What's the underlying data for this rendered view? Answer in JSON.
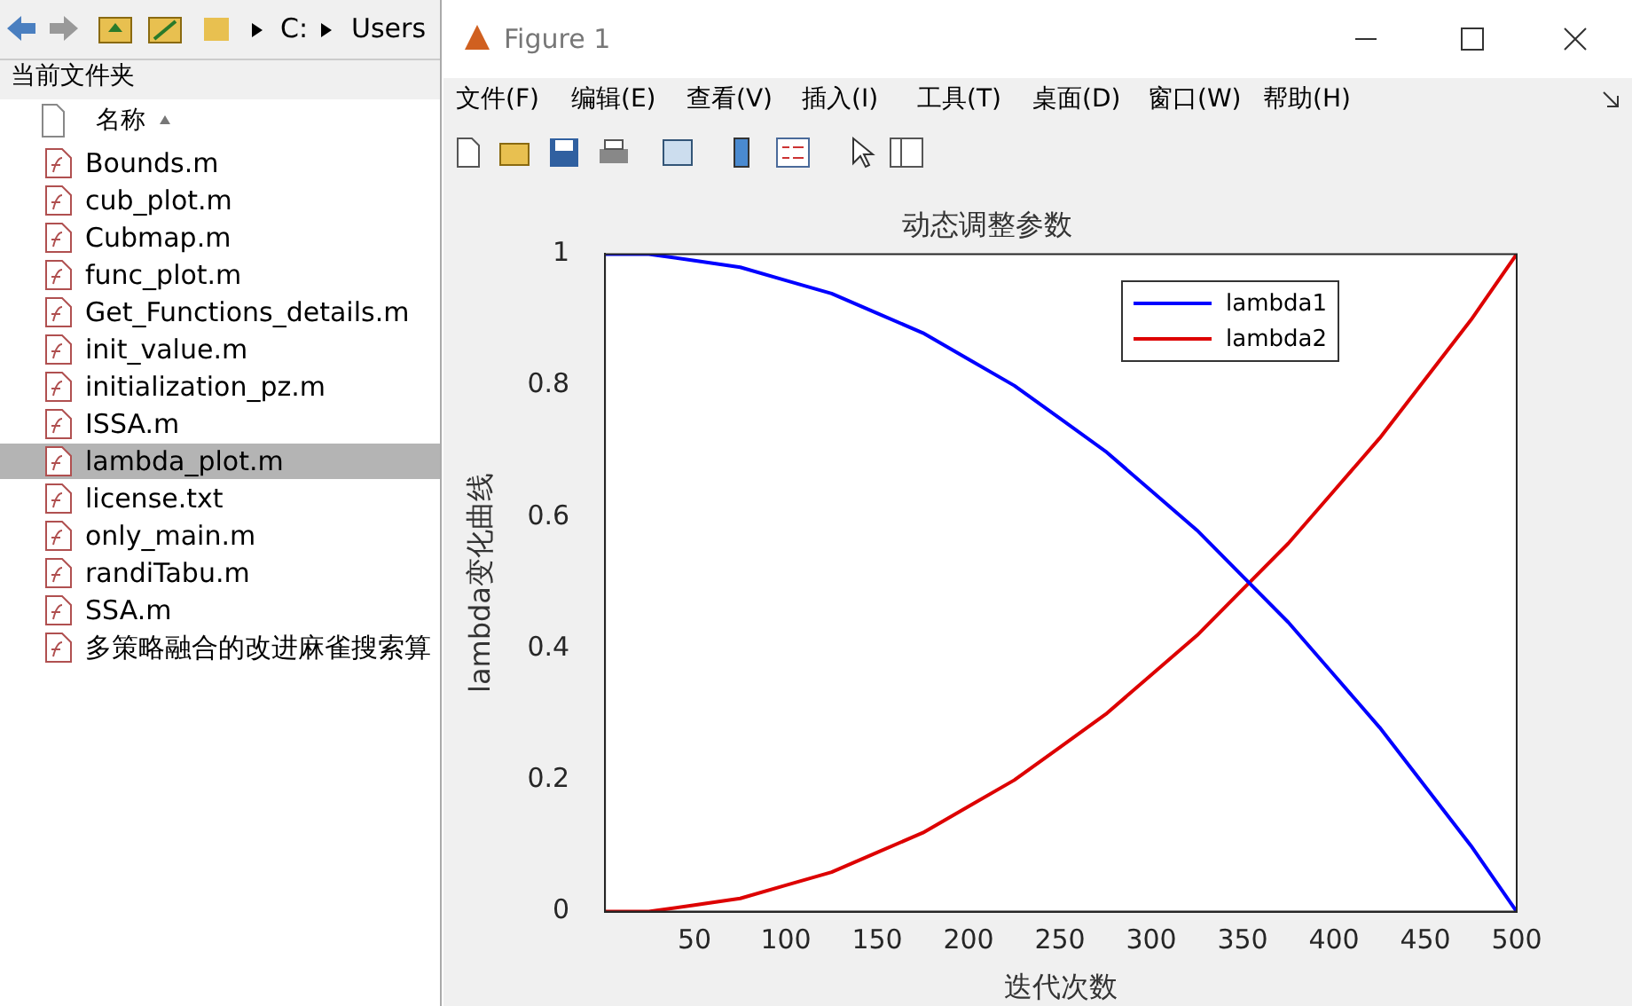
{
  "chart_data": {
    "type": "line",
    "title": "动态调整参数",
    "xlabel": "迭代次数",
    "ylabel": "lambda变化曲线",
    "x": [
      1,
      25,
      50,
      75,
      100,
      125,
      150,
      175,
      200,
      225,
      250,
      275,
      300,
      325,
      350,
      375,
      400,
      425,
      450,
      475,
      500
    ],
    "series": [
      {
        "name": "lambda1",
        "color": "#0000ff",
        "values": [
          1.0,
          1.0,
          0.99,
          0.98,
          0.96,
          0.94,
          0.91,
          0.88,
          0.84,
          0.8,
          0.75,
          0.7,
          0.64,
          0.58,
          0.51,
          0.44,
          0.36,
          0.28,
          0.19,
          0.1,
          0.0
        ]
      },
      {
        "name": "lambda2",
        "color": "#dd0000",
        "values": [
          0.0,
          0.0,
          0.01,
          0.02,
          0.04,
          0.06,
          0.09,
          0.12,
          0.16,
          0.2,
          0.25,
          0.3,
          0.36,
          0.42,
          0.49,
          0.56,
          0.64,
          0.72,
          0.81,
          0.9,
          1.0
        ]
      }
    ],
    "xlim": [
      1,
      500
    ],
    "xticks": [
      50,
      100,
      150,
      200,
      250,
      300,
      350,
      400,
      450,
      500
    ],
    "ylim": [
      0,
      1
    ],
    "yticks": [
      0,
      0.2,
      0.4,
      0.6,
      0.8,
      1
    ],
    "grid": false,
    "legend": "top right",
    "marker": "none",
    "line_style": "solid",
    "annotations": [
      "C:",
      "Users",
      "当前文件夹",
      "名称",
      "Bounds.m",
      "cub_plot.m",
      "Cubmap.m",
      "func_plot.m",
      "Get_Functions_details.m",
      "init_value.m",
      "initialization_pz.m",
      "ISSA.m",
      "lambda_plot.m",
      "license.txt",
      "only_main.m",
      "randiTabu.m",
      "SSA.m",
      "多策略融合的改进麻雀搜索算",
      "Figure 1",
      "文件(F)",
      "编辑(E)",
      "查看(V)",
      "插入(I)",
      "工具(T)",
      "桌面(D)",
      "窗口(W)",
      "帮助(H)"
    ]
  }
}
